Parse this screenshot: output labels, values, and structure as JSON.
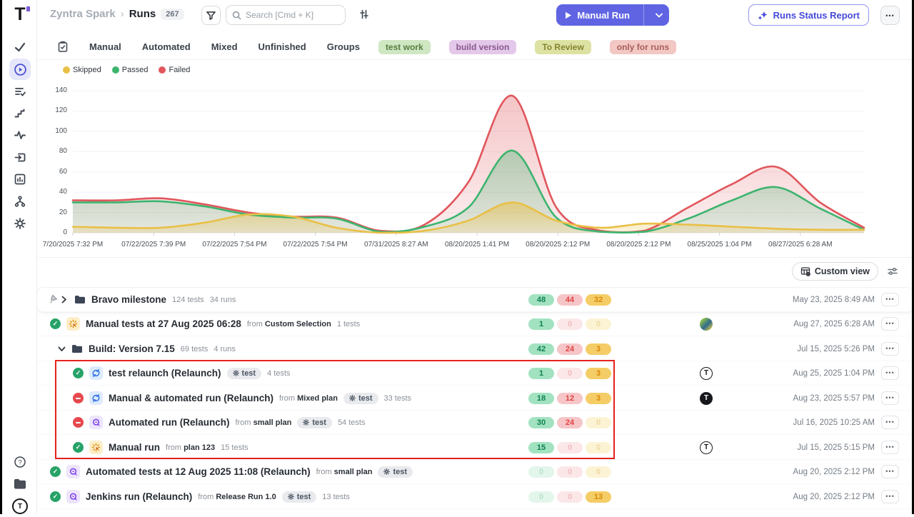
{
  "labels": {
    "logo": "T",
    "more": "•••",
    "from": "from"
  },
  "header": {
    "project": "Zyntra Spark",
    "separator": "›",
    "page": "Runs",
    "count": "267",
    "search_placeholder": "Search [Cmd + K]",
    "manual_run": "Manual Run",
    "runs_status_report": "Runs Status Report"
  },
  "tabs": {
    "items": [
      "Manual",
      "Automated",
      "Mixed",
      "Unfinished",
      "Groups"
    ],
    "tags": [
      {
        "label": "test work",
        "bg": "#cfe7c2",
        "fg": "#567d42"
      },
      {
        "label": "build version",
        "bg": "#e4c8ea",
        "fg": "#87588b"
      },
      {
        "label": "To Review",
        "bg": "#dde2a3",
        "fg": "#83842f"
      },
      {
        "label": "only for runs",
        "bg": "#f2c7c4",
        "fg": "#a95f58"
      }
    ]
  },
  "chart_data": {
    "type": "area",
    "legend": [
      {
        "label": "Skipped",
        "color": "#e9c046"
      },
      {
        "label": "Passed",
        "color": "#3cb46e"
      },
      {
        "label": "Failed",
        "color": "#e0565c"
      }
    ],
    "ylim": [
      0,
      140
    ],
    "yticks": [
      0,
      20,
      40,
      60,
      80,
      100,
      120,
      140
    ],
    "x_tick_labels": [
      "7/20/2025 7:32 PM",
      "07/22/2025 7:39 PM",
      "07/22/2025 7:54 PM",
      "07/22/2025 7:54 PM",
      "07/31/2025 8:27 AM",
      "08/20/2025 1:41 PM",
      "08/20/2025 2:12 PM",
      "08/20/2025 2:12 PM",
      "08/25/2025 1:04 PM",
      "08/27/2025 6:28 AM"
    ],
    "series": [
      {
        "name": "Failed",
        "color": "#e0565c",
        "values": [
          32,
          32,
          34,
          28,
          20,
          16,
          15,
          2,
          8,
          50,
          135,
          25,
          2,
          2,
          25,
          48,
          65,
          30,
          5
        ]
      },
      {
        "name": "Passed",
        "color": "#3cb46e",
        "values": [
          30,
          30,
          31,
          26,
          18,
          15,
          14,
          1,
          6,
          25,
          81,
          15,
          1,
          1,
          14,
          32,
          45,
          24,
          3
        ]
      },
      {
        "name": "Skipped",
        "color": "#e9c046",
        "values": [
          6,
          5,
          5,
          10,
          18,
          16,
          5,
          0,
          2,
          12,
          30,
          12,
          5,
          9,
          8,
          6,
          4,
          3,
          3
        ]
      }
    ],
    "legend_position": "top-left",
    "grid": true
  },
  "toolbar": {
    "custom_view": "Custom view"
  },
  "rows": [
    {
      "kind": "folder",
      "title": "Bravo milestone",
      "tests": "124 tests",
      "runs": "34 runs",
      "badges": {
        "passed": "48",
        "failed": "44",
        "skipped": "32"
      },
      "date": "May 23, 2025 8:49 AM"
    },
    {
      "kind": "run",
      "title": "Manual tests at 27 Aug 2025 06:28",
      "from": "Custom Selection",
      "tests": "1 tests",
      "badges": {
        "passed": "1",
        "failed": "0",
        "skipped": "0"
      },
      "date": "Aug 27, 2025 6:28 AM"
    },
    {
      "kind": "folder",
      "title": "Build: Version 7.15",
      "tests": "69 tests",
      "runs": "4 runs",
      "badges": {
        "passed": "42",
        "failed": "24",
        "skipped": "3"
      },
      "date": "Jul 15, 2025 5:26 PM"
    },
    {
      "kind": "run",
      "title": "test relaunch (Relaunch)",
      "tag": "test",
      "tests": "4 tests",
      "badges": {
        "passed": "1",
        "failed": "0",
        "skipped": "3"
      },
      "date": "Aug 25, 2025 1:04 PM"
    },
    {
      "kind": "run",
      "title": "Manual & automated run (Relaunch)",
      "from": "Mixed plan",
      "tag": "test",
      "tests": "33 tests",
      "badges": {
        "passed": "18",
        "failed": "12",
        "skipped": "3"
      },
      "date": "Aug 23, 2025 5:57 PM"
    },
    {
      "kind": "run",
      "title": "Automated run (Relaunch)",
      "from": "small plan",
      "tag": "test",
      "tests": "54 tests",
      "badges": {
        "passed": "30",
        "failed": "24",
        "skipped": "0"
      },
      "date": "Jul 16, 2025 10:25 AM"
    },
    {
      "kind": "run",
      "title": "Manual run",
      "from": "plan 123",
      "tests": "15 tests",
      "badges": {
        "passed": "15",
        "failed": "0",
        "skipped": "0"
      },
      "date": "Jul 15, 2025 5:15 PM"
    },
    {
      "kind": "run",
      "title": "Automated tests at 12 Aug 2025 11:08 (Relaunch)",
      "from": "small plan",
      "tag": "test",
      "badges": {
        "passed": "0",
        "failed": "0",
        "skipped": "0"
      },
      "date": "Aug 20, 2025 2:12 PM"
    },
    {
      "kind": "run",
      "title": "Jenkins run (Relaunch)",
      "from": "Release Run 1.0",
      "tag": "test",
      "tests": "13 tests",
      "badges": {
        "passed": "0",
        "failed": "0",
        "skipped": "13"
      },
      "date": "Aug 20, 2025 2:12 PM"
    }
  ],
  "colors": {
    "accent": "#6064e3",
    "passed": "#27a368",
    "failed": "#e5484d",
    "skipped": "#e9c046"
  }
}
